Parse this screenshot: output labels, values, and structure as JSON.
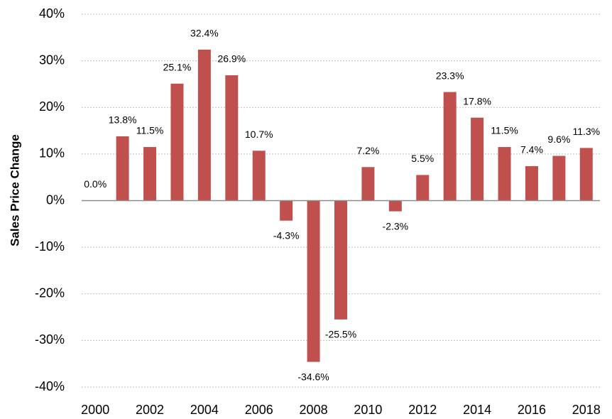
{
  "chart_data": {
    "type": "bar",
    "y_label": "Sales Price Change",
    "categories": [
      "2000",
      null,
      "2002",
      null,
      "2004",
      null,
      "2006",
      null,
      "2008",
      null,
      "2010",
      null,
      "2012",
      null,
      "2014",
      null,
      "2016",
      null,
      "2018"
    ],
    "values": [
      0.0,
      13.8,
      11.5,
      25.1,
      32.4,
      26.9,
      10.7,
      -4.3,
      -34.6,
      -25.5,
      7.2,
      -2.3,
      5.5,
      23.3,
      17.8,
      11.5,
      7.4,
      9.6,
      11.3
    ],
    "value_labels": [
      "0.0%",
      "13.8%",
      "11.5%",
      "25.1%",
      "32.4%",
      "26.9%",
      "10.7%",
      "-4.3%",
      "-34.6%",
      "-25.5%",
      "7.2%",
      "-2.3%",
      "5.5%",
      "23.3%",
      "17.8%",
      "11.5%",
      "7.4%",
      "9.6%",
      "11.3%"
    ],
    "color": "#c0504d",
    "ylim": [
      -40,
      40
    ],
    "yticks": [
      {
        "value": -40,
        "label": "-40%"
      },
      {
        "value": -30,
        "label": "-30%"
      },
      {
        "value": -20,
        "label": "-20%"
      },
      {
        "value": -10,
        "label": "-10%"
      },
      {
        "value": 0,
        "label": "0%"
      },
      {
        "value": 10,
        "label": "10%"
      },
      {
        "value": 20,
        "label": "20%"
      },
      {
        "value": 30,
        "label": "30%"
      },
      {
        "value": 40,
        "label": "40%"
      }
    ],
    "grid": true
  }
}
